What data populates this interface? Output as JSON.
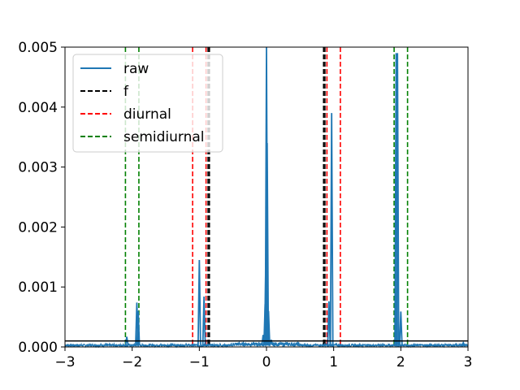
{
  "chart_data": {
    "type": "line",
    "title": "",
    "xlabel": "",
    "ylabel": "",
    "xlim": [
      -3,
      3
    ],
    "ylim": [
      0,
      0.005
    ],
    "x_ticks": [
      -3,
      -2,
      -1,
      0,
      1,
      2,
      3
    ],
    "x_tick_labels": [
      "−3",
      "−2",
      "−1",
      "0",
      "1",
      "2",
      "3"
    ],
    "y_ticks": [
      0,
      0.001,
      0.002,
      0.003,
      0.004,
      0.005
    ],
    "y_tick_labels": [
      "0.000",
      "0.001",
      "0.002",
      "0.003",
      "0.004",
      "0.005"
    ],
    "grid": false,
    "legend_position": "top-left",
    "legend": [
      {
        "label": "raw",
        "color": "#1f77b4",
        "style": "solid"
      },
      {
        "label": "f",
        "color": "#000000",
        "style": "dashed"
      },
      {
        "label": "diurnal",
        "color": "#ff0000",
        "style": "dashed"
      },
      {
        "label": "semidiurnal",
        "color": "#008000",
        "style": "dashed"
      }
    ],
    "series": [
      {
        "name": "raw",
        "color": "#1f77b4",
        "style": "solid",
        "peaks": [
          {
            "x": -2.08,
            "y": 0.00017
          },
          {
            "x": -1.93,
            "y": 0.00074
          },
          {
            "x": -1.91,
            "y": 0.0006
          },
          {
            "x": -1.0,
            "y": 0.00145
          },
          {
            "x": -0.93,
            "y": 0.00084
          },
          {
            "x": -0.05,
            "y": 0.0002
          },
          {
            "x": -0.02,
            "y": 0.00072
          },
          {
            "x": -0.01,
            "y": 0.00145
          },
          {
            "x": 0.0,
            "y": 0.005
          },
          {
            "x": 0.01,
            "y": 0.0034
          },
          {
            "x": 0.03,
            "y": 0.0006
          },
          {
            "x": 0.07,
            "y": 0.00012
          },
          {
            "x": 0.93,
            "y": 0.00076
          },
          {
            "x": 0.97,
            "y": 0.0039
          },
          {
            "x": 1.93,
            "y": 0.0049
          },
          {
            "x": 1.95,
            "y": 0.0049
          },
          {
            "x": 2.0,
            "y": 0.00059
          },
          {
            "x": 2.93,
            "y": 7e-05
          }
        ],
        "noise_level": 4e-05
      },
      {
        "name": "f",
        "color": "#000000",
        "style": "dashed",
        "vlines": [
          -0.87,
          -0.85,
          0.85,
          0.87
        ]
      },
      {
        "name": "diurnal",
        "color": "#ff0000",
        "style": "dashed",
        "vlines": [
          -1.1,
          -0.9,
          0.9,
          1.1
        ]
      },
      {
        "name": "semidiurnal",
        "color": "#008000",
        "style": "dashed",
        "vlines": [
          -2.1,
          -1.9,
          1.9,
          2.1
        ]
      }
    ],
    "hlines": [
      {
        "y": 0.0001,
        "color": "#000000",
        "style": "solid"
      }
    ]
  }
}
